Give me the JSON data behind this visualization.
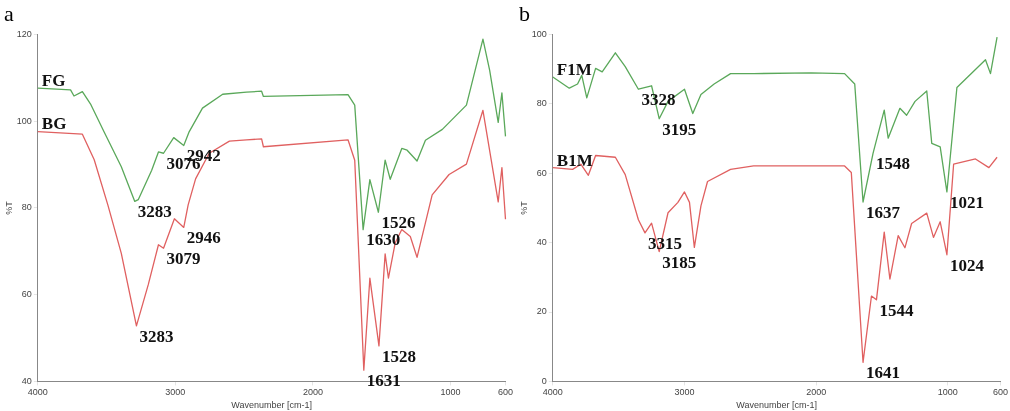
{
  "chart_data": [
    {
      "type": "line",
      "title": "a",
      "xlabel": "Wavenumber [cm-1]",
      "ylabel": "%T",
      "xlim": [
        4000,
        600
      ],
      "xticks": [
        4000,
        3000,
        2000,
        1000,
        600
      ],
      "ylim": [
        40,
        120
      ],
      "yticks": [
        40,
        60,
        80,
        100,
        120
      ],
      "grid": false,
      "legend": false,
      "series": [
        {
          "name": "FG",
          "color": "#5aa85a",
          "x": [
            4000,
            3762,
            3737,
            3676,
            3614,
            3516,
            3393,
            3295,
            3270,
            3172,
            3123,
            3086,
            3012,
            2939,
            2902,
            2803,
            2656,
            2483,
            2373,
            2360,
            1745,
            1696,
            1635,
            1586,
            1524,
            1475,
            1438,
            1354,
            1315,
            1243,
            1182,
            1059,
            884,
            764,
            715,
            653,
            626,
            600
          ],
          "values": [
            107.6,
            107.2,
            105.8,
            106.8,
            103.8,
            97.4,
            89.5,
            81.5,
            81.9,
            88.7,
            92.9,
            92.6,
            96.2,
            94.4,
            97.4,
            103.0,
            106.2,
            106.7,
            106.9,
            105.7,
            106.1,
            103.7,
            75.0,
            86.5,
            79.0,
            91.0,
            86.6,
            93.7,
            93.3,
            90.8,
            95.6,
            98.1,
            103.7,
            118.9,
            111.7,
            99.7,
            106.5,
            96.5
          ]
        },
        {
          "name": "BG",
          "color": "#e06060",
          "x": [
            4000,
            3676,
            3590,
            3491,
            3393,
            3283,
            3197,
            3123,
            3086,
            3007,
            2939,
            2907,
            2853,
            2754,
            2607,
            2483,
            2373,
            2360,
            1745,
            1696,
            1630,
            1586,
            1520,
            1475,
            1451,
            1402,
            1354,
            1292,
            1243,
            1133,
            1010,
            884,
            764,
            703,
            653,
            626,
            600
          ],
          "values": [
            97.6,
            97.0,
            91.1,
            80.7,
            69.5,
            52.8,
            62.3,
            71.5,
            70.7,
            77.5,
            75.5,
            80.7,
            86.7,
            92.6,
            95.4,
            95.7,
            95.9,
            94.1,
            95.7,
            91.0,
            42.6,
            63.8,
            48.2,
            69.4,
            63.8,
            71.9,
            75.0,
            73.4,
            68.6,
            83.0,
            87.7,
            90.1,
            102.5,
            90.9,
            81.4,
            89.3,
            77.4
          ]
        }
      ],
      "annotations": [
        {
          "text": "3283",
          "x": 3295,
          "y": 81.5
        },
        {
          "text": "3076",
          "x": 3086,
          "y": 92.6
        },
        {
          "text": "2942",
          "x": 2939,
          "y": 94.4
        },
        {
          "text": "1630",
          "x": 1635,
          "y": 75.0
        },
        {
          "text": "1526",
          "x": 1524,
          "y": 79.0
        },
        {
          "text": "3283",
          "x": 3283,
          "y": 52.8
        },
        {
          "text": "3079",
          "x": 3086,
          "y": 70.7
        },
        {
          "text": "2946",
          "x": 2939,
          "y": 75.5
        },
        {
          "text": "1631",
          "x": 1630,
          "y": 42.6
        },
        {
          "text": "1528",
          "x": 1520,
          "y": 48.2
        }
      ]
    },
    {
      "type": "line",
      "title": "b",
      "xlabel": "Wavenumber [cm-1]",
      "ylabel": "%T",
      "xlim": [
        4000,
        600
      ],
      "xticks": [
        4000,
        3000,
        2000,
        1000,
        600
      ],
      "ylim": [
        0,
        100
      ],
      "yticks": [
        0,
        20,
        40,
        60,
        80,
        100
      ],
      "grid": false,
      "legend": false,
      "series": [
        {
          "name": "F1M",
          "color": "#5aa85a",
          "x": [
            4000,
            3875,
            3812,
            3780,
            3742,
            3675,
            3625,
            3525,
            3450,
            3350,
            3250,
            3192,
            3125,
            3000,
            2937,
            2875,
            2775,
            2650,
            2475,
            2038,
            1784,
            1707,
            1644,
            1568,
            1483,
            1453,
            1364,
            1313,
            1249,
            1160,
            1122,
            1058,
            1007,
            931,
            714,
            676,
            626
          ],
          "values": [
            87.7,
            84.5,
            85.7,
            88.2,
            81.7,
            90.2,
            89.2,
            94.7,
            90.7,
            84.2,
            85.2,
            75.7,
            80.7,
            84.2,
            77.2,
            82.7,
            85.7,
            88.7,
            88.7,
            88.9,
            88.7,
            85.7,
            51.7,
            65.7,
            78.2,
            70.1,
            78.7,
            76.7,
            80.7,
            83.7,
            68.6,
            67.6,
            54.6,
            84.7,
            92.7,
            88.7,
            99.2
          ]
        },
        {
          "name": "B1M",
          "color": "#e06060",
          "x": [
            4000,
            3850,
            3787,
            3730,
            3675,
            3525,
            3450,
            3350,
            3300,
            3250,
            3192,
            3125,
            3050,
            3000,
            2962,
            2925,
            2875,
            2825,
            2650,
            2475,
            1784,
            1733,
            1644,
            1580,
            1542,
            1483,
            1440,
            1377,
            1326,
            1275,
            1160,
            1109,
            1058,
            1007,
            956,
            790,
            688,
            626
          ],
          "values": [
            61.6,
            61.1,
            62.6,
            59.4,
            65.1,
            64.6,
            59.6,
            46.6,
            42.8,
            45.6,
            37.4,
            48.6,
            51.6,
            54.6,
            51.6,
            38.6,
            50.6,
            57.6,
            61.1,
            62.1,
            62.1,
            60.2,
            5.5,
            24.6,
            23.5,
            43.0,
            29.5,
            42.0,
            38.5,
            45.5,
            48.5,
            41.5,
            46.0,
            36.5,
            62.6,
            64.1,
            61.6,
            64.6
          ]
        }
      ],
      "annotations": [
        {
          "text": "3328",
          "x": 3350,
          "y": 84.2
        },
        {
          "text": "3195",
          "x": 3192,
          "y": 75.7
        },
        {
          "text": "1548",
          "x": 1568,
          "y": 65.7
        },
        {
          "text": "1637",
          "x": 1644,
          "y": 51.7
        },
        {
          "text": "1021",
          "x": 1007,
          "y": 54.6
        },
        {
          "text": "3315",
          "x": 3300,
          "y": 42.8
        },
        {
          "text": "3185",
          "x": 3192,
          "y": 37.4
        },
        {
          "text": "1544",
          "x": 1542,
          "y": 23.5
        },
        {
          "text": "1641",
          "x": 1644,
          "y": 5.5
        },
        {
          "text": "1024",
          "x": 1007,
          "y": 36.5
        }
      ]
    }
  ]
}
